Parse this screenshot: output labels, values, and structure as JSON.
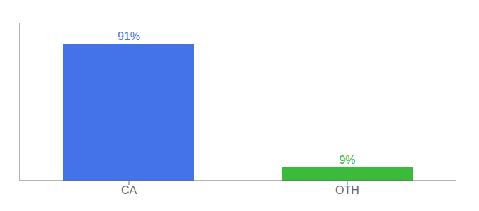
{
  "chart_data": {
    "type": "bar",
    "categories": [
      "CA",
      "OTH"
    ],
    "values": [
      91,
      9
    ],
    "value_labels": [
      "91%",
      "9%"
    ],
    "colors": [
      "#4472e8",
      "#3cba3c"
    ],
    "ylim": [
      0,
      105
    ],
    "data_labels": true,
    "tick_labels": "x",
    "grid": false
  }
}
